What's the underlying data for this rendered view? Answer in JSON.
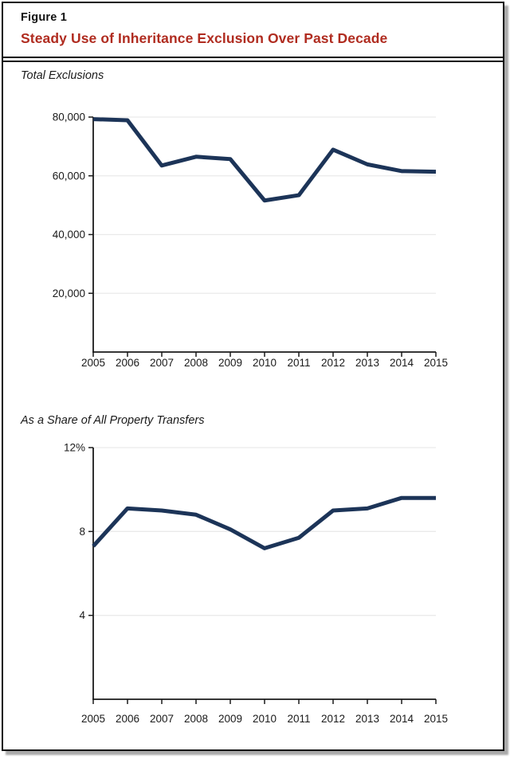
{
  "figure": {
    "label": "Figure 1",
    "title": "Steady Use of Inheritance Exclusion Over Past Decade",
    "title_color": "#b02c20",
    "line_color": "#1c3458",
    "gridline_color": "#eaeaea",
    "axis_color": "#1a1a1a"
  },
  "chart_data": [
    {
      "type": "line",
      "title": "Total Exclusions",
      "x": [
        2005,
        2006,
        2007,
        2008,
        2009,
        2010,
        2011,
        2012,
        2013,
        2014,
        2015
      ],
      "values": [
        79300,
        78900,
        63500,
        66500,
        65700,
        51600,
        53400,
        68900,
        63900,
        61600,
        61400
      ],
      "ylim": [
        0,
        80000
      ],
      "yticks": [
        20000,
        40000,
        60000,
        80000
      ],
      "ytick_labels": [
        "20,000",
        "40,000",
        "60,000",
        "80,000"
      ],
      "xlabel": "",
      "ylabel": "",
      "grid": "horizontal",
      "legend": "none"
    },
    {
      "type": "line",
      "title": "As a Share of All Property Transfers",
      "x": [
        2005,
        2006,
        2007,
        2008,
        2009,
        2010,
        2011,
        2012,
        2013,
        2014,
        2015
      ],
      "values": [
        7.3,
        9.1,
        9.0,
        8.8,
        8.1,
        7.2,
        7.7,
        9.0,
        9.1,
        9.6,
        9.6
      ],
      "ylim": [
        0,
        12
      ],
      "yticks": [
        4,
        8,
        12
      ],
      "ytick_labels": [
        "4",
        "8",
        "12%"
      ],
      "xlabel": "",
      "ylabel": "",
      "grid": "horizontal",
      "legend": "none"
    }
  ]
}
